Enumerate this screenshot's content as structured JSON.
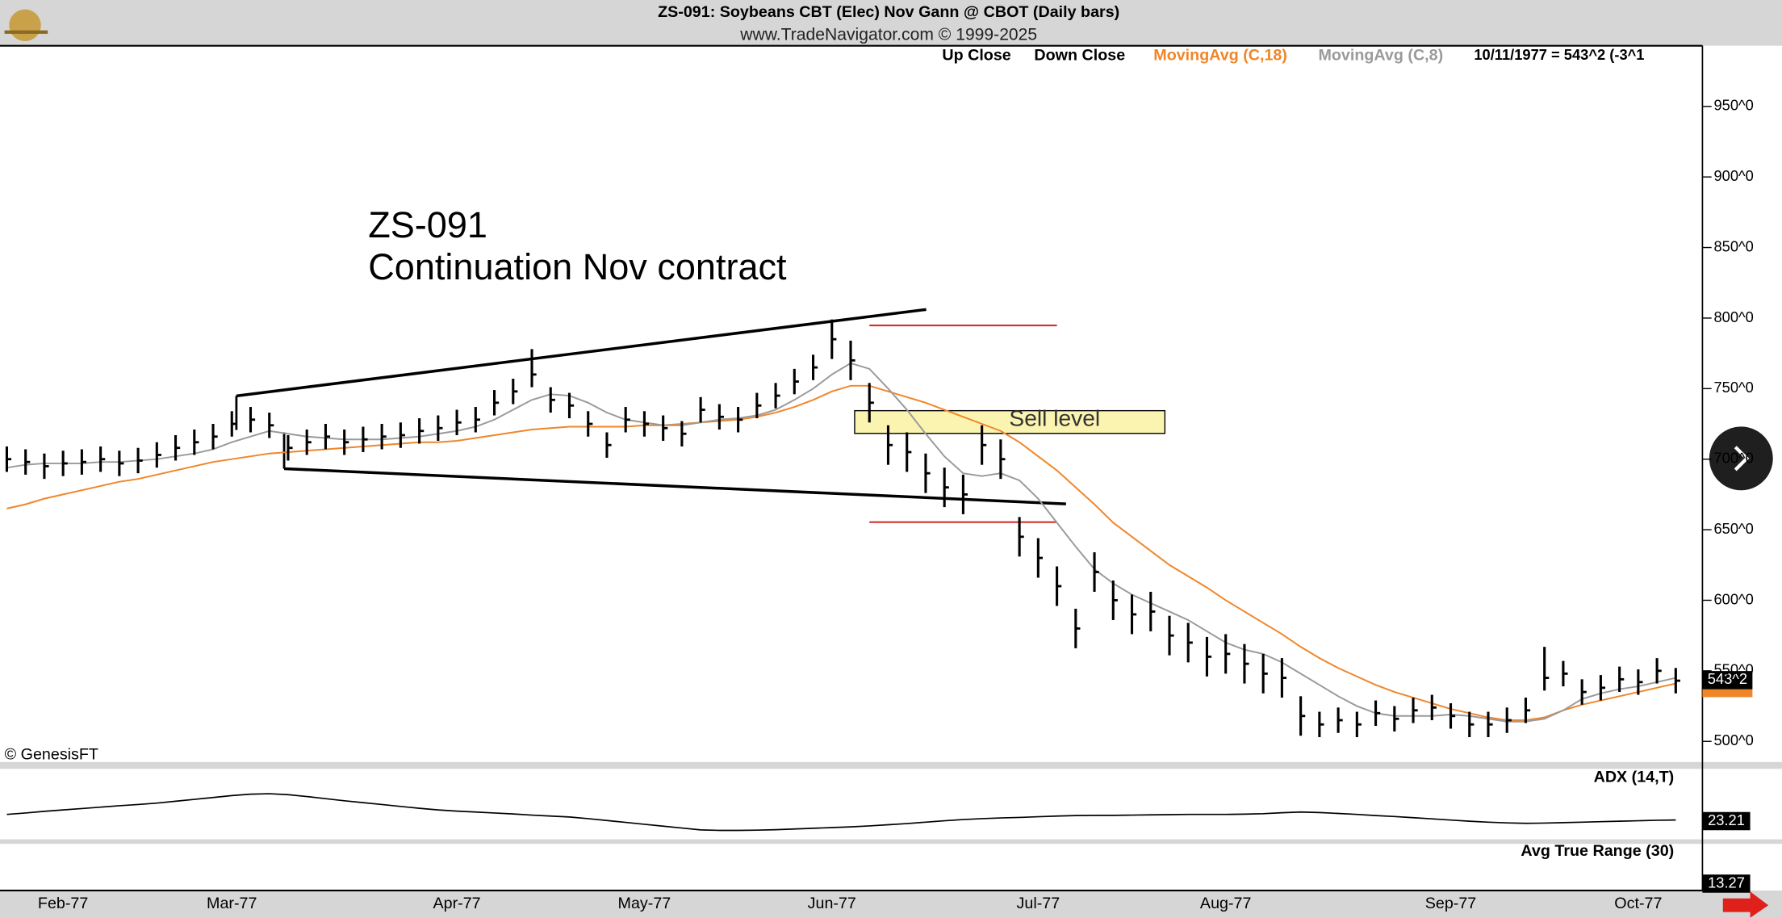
{
  "chart_data": {
    "type": "ohlc",
    "title": "ZS-091:  Soybeans CBT (Elec) Nov Gann @ CBOT  (Daily bars)",
    "subtitle": "www.TradeNavigator.com © 1999-2025",
    "bar_legend": [
      "Up Close",
      "Down Close"
    ],
    "info_label": "10/11/1977 = 543^2 (-3^1",
    "annotations": [
      "ZS-091",
      "Continuation Nov contract",
      "Sell level"
    ],
    "copyright": "© GenesisFT",
    "last_price_label": "543^2",
    "categories": [
      null,
      null,
      null,
      "Feb-77",
      null,
      null,
      null,
      null,
      null,
      null,
      null,
      null,
      "Mar-77",
      null,
      null,
      null,
      null,
      null,
      null,
      null,
      null,
      null,
      null,
      null,
      "Apr-77",
      null,
      null,
      null,
      null,
      null,
      null,
      null,
      null,
      null,
      "May-77",
      null,
      null,
      null,
      null,
      null,
      null,
      null,
      null,
      null,
      "Jun-77",
      null,
      null,
      null,
      null,
      null,
      null,
      null,
      null,
      null,
      null,
      "Jul-77",
      null,
      null,
      null,
      null,
      null,
      null,
      null,
      null,
      null,
      "Aug-77",
      null,
      null,
      null,
      null,
      null,
      null,
      null,
      null,
      null,
      null,
      null,
      "Sep-77",
      null,
      null,
      null,
      null,
      null,
      null,
      null,
      null,
      null,
      "Oct-77",
      null,
      null
    ],
    "high": [
      709,
      707,
      704,
      706,
      707,
      709,
      706,
      708,
      712,
      717,
      721,
      725,
      734,
      737,
      733,
      717,
      721,
      725,
      721,
      723,
      725,
      726,
      729,
      731,
      735,
      737,
      749,
      757,
      778,
      751,
      747,
      734,
      719,
      737,
      734,
      731,
      727,
      744,
      739,
      737,
      747,
      754,
      764,
      774,
      799,
      784,
      754,
      724,
      719,
      704,
      694,
      689,
      724,
      714,
      659,
      644,
      624,
      594,
      634,
      614,
      604,
      606,
      589,
      584,
      574,
      576,
      569,
      562,
      559,
      532,
      521,
      524,
      521,
      529,
      525,
      531,
      533,
      527,
      521,
      521,
      524,
      531,
      567,
      557,
      544,
      547,
      553,
      551,
      559,
      552
    ],
    "low": [
      691,
      689,
      686,
      688,
      689,
      691,
      688,
      690,
      694,
      699,
      703,
      707,
      716,
      719,
      715,
      699,
      703,
      707,
      703,
      705,
      707,
      708,
      711,
      713,
      717,
      719,
      731,
      739,
      751,
      733,
      729,
      716,
      701,
      719,
      716,
      713,
      709,
      726,
      721,
      719,
      729,
      736,
      746,
      756,
      771,
      756,
      726,
      696,
      691,
      676,
      666,
      661,
      696,
      686,
      631,
      616,
      596,
      566,
      606,
      586,
      576,
      578,
      561,
      556,
      546,
      548,
      541,
      534,
      531,
      504,
      503,
      506,
      503,
      511,
      507,
      513,
      515,
      509,
      503,
      503,
      506,
      513,
      536,
      539,
      526,
      529,
      535,
      533,
      541,
      534
    ],
    "close": [
      700,
      698,
      695,
      697,
      698,
      700,
      697,
      699,
      703,
      708,
      712,
      716,
      725,
      728,
      724,
      708,
      712,
      716,
      712,
      714,
      716,
      717,
      720,
      722,
      726,
      728,
      740,
      748,
      760,
      742,
      738,
      725,
      710,
      728,
      725,
      722,
      718,
      735,
      730,
      728,
      738,
      745,
      755,
      765,
      785,
      770,
      740,
      710,
      705,
      690,
      680,
      675,
      710,
      700,
      645,
      630,
      610,
      580,
      620,
      600,
      590,
      592,
      575,
      570,
      560,
      562,
      555,
      548,
      545,
      518,
      512,
      515,
      512,
      520,
      516,
      522,
      524,
      518,
      512,
      512,
      515,
      522,
      545,
      548,
      535,
      538,
      544,
      542,
      550,
      543
    ],
    "bar_color": "#000000",
    "series": [
      {
        "name": "MovingAvg (C,18)",
        "color": "#f0862a",
        "values": [
          665,
          668,
          672,
          675,
          678,
          681,
          684,
          686,
          689,
          692,
          695,
          698,
          700,
          702,
          704,
          705,
          706,
          707,
          708,
          709,
          710,
          711,
          712,
          712,
          713,
          715,
          717,
          719,
          721,
          722,
          723,
          723,
          723,
          723,
          724,
          724,
          725,
          726,
          727,
          728,
          730,
          733,
          737,
          742,
          748,
          752,
          752,
          748,
          744,
          740,
          735,
          730,
          725,
          720,
          712,
          702,
          692,
          680,
          668,
          655,
          645,
          635,
          625,
          617,
          609,
          600,
          592,
          584,
          576,
          567,
          559,
          552,
          546,
          540,
          535,
          531,
          527,
          523,
          520,
          517,
          515,
          515,
          517,
          522,
          526,
          529,
          532,
          535,
          538,
          541
        ]
      },
      {
        "name": "MovingAvg (C,8)",
        "color": "#9a9a9a",
        "values": [
          694,
          696,
          697,
          697,
          697,
          698,
          698,
          699,
          700,
          702,
          704,
          707,
          712,
          716,
          720,
          718,
          716,
          715,
          714,
          714,
          714,
          715,
          716,
          718,
          720,
          723,
          728,
          735,
          742,
          746,
          745,
          740,
          733,
          728,
          726,
          724,
          724,
          726,
          728,
          729,
          731,
          735,
          742,
          750,
          760,
          768,
          764,
          750,
          735,
          718,
          702,
          690,
          688,
          690,
          685,
          672,
          655,
          638,
          622,
          612,
          604,
          598,
          592,
          586,
          578,
          570,
          565,
          562,
          556,
          548,
          540,
          532,
          525,
          520,
          518,
          518,
          518,
          519,
          518,
          516,
          514,
          514,
          516,
          522,
          530,
          534,
          537,
          539,
          542,
          545
        ]
      }
    ],
    "ylim": [
      487,
      993
    ],
    "yticks": [
      {
        "value": 500,
        "label": "500^0"
      },
      {
        "value": 550,
        "label": "550^0"
      },
      {
        "value": 600,
        "label": "600^0"
      },
      {
        "value": 650,
        "label": "650^0"
      },
      {
        "value": 700,
        "label": "700^0"
      },
      {
        "value": 750,
        "label": "750^0"
      },
      {
        "value": 800,
        "label": "800^0"
      },
      {
        "value": 850,
        "label": "850^0"
      },
      {
        "value": 900,
        "label": "900^0"
      },
      {
        "value": 950,
        "label": "950^0"
      }
    ],
    "adx": {
      "label": "ADX (14,T)",
      "color": "#000000",
      "ylim": [
        15,
        45
      ],
      "values": [
        25.6,
        26.2,
        26.9,
        27.5,
        28.1,
        28.7,
        29.3,
        29.8,
        30.4,
        31.2,
        32.0,
        32.8,
        33.6,
        34.2,
        34.4,
        34.0,
        33.2,
        32.3,
        31.4,
        30.6,
        29.8,
        29.0,
        28.2,
        27.5,
        27.0,
        26.6,
        26.2,
        25.8,
        25.3,
        24.9,
        24.5,
        23.8,
        23.0,
        22.2,
        21.4,
        20.6,
        19.8,
        19.0,
        18.8,
        18.8,
        18.9,
        19.1,
        19.4,
        19.7,
        20.0,
        20.3,
        20.7,
        21.2,
        21.7,
        22.3,
        22.9,
        23.4,
        23.8,
        24.1,
        24.3,
        24.6,
        24.9,
        25.1,
        25.2,
        25.2,
        25.3,
        25.4,
        25.5,
        25.6,
        25.6,
        25.6,
        25.7,
        25.9,
        26.3,
        26.6,
        26.4,
        26.0,
        25.6,
        25.1,
        24.7,
        24.2,
        23.7,
        23.2,
        22.7,
        22.3,
        22.0,
        21.8,
        21.9,
        22.1,
        22.3,
        22.5,
        22.7,
        22.9,
        23.1,
        23.21
      ]
    },
    "atr": {
      "label": "Avg True Range (30)",
      "value": 13.27
    }
  }
}
